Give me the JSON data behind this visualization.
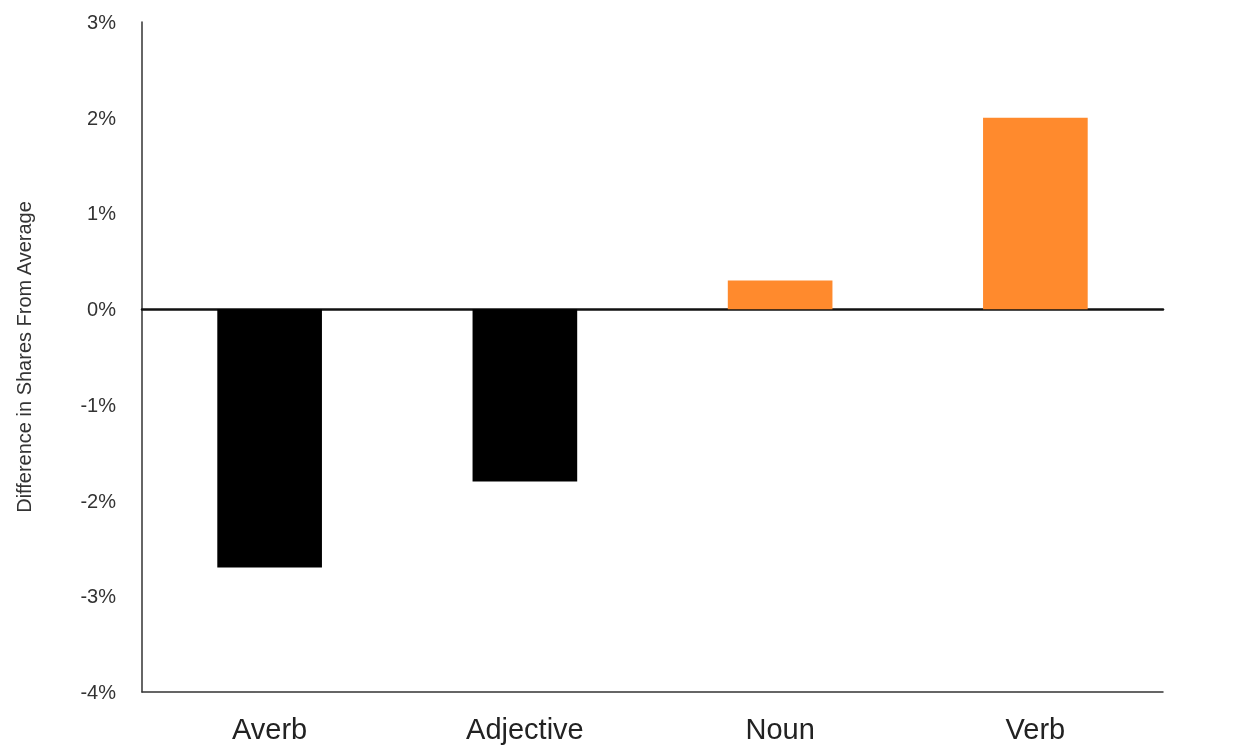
{
  "chart_data": {
    "type": "bar",
    "ylabel": "Difference in Shares From Average",
    "categories": [
      "Averb",
      "Adjective",
      "Noun",
      "Verb"
    ],
    "values": [
      -2.7,
      -1.8,
      0.3,
      2.0
    ],
    "colors": [
      "#000000",
      "#000000",
      "#ff8a2d",
      "#ff8a2d"
    ],
    "ylim": [
      -4,
      3
    ],
    "yticks": [
      {
        "value": -4,
        "label": "-4%"
      },
      {
        "value": -3,
        "label": "-3%"
      },
      {
        "value": -2,
        "label": "-2%"
      },
      {
        "value": -1,
        "label": "-1%"
      },
      {
        "value": 0,
        "label": "0%"
      },
      {
        "value": 1,
        "label": "1%"
      },
      {
        "value": 2,
        "label": "2%"
      },
      {
        "value": 3,
        "label": "3%"
      }
    ]
  }
}
